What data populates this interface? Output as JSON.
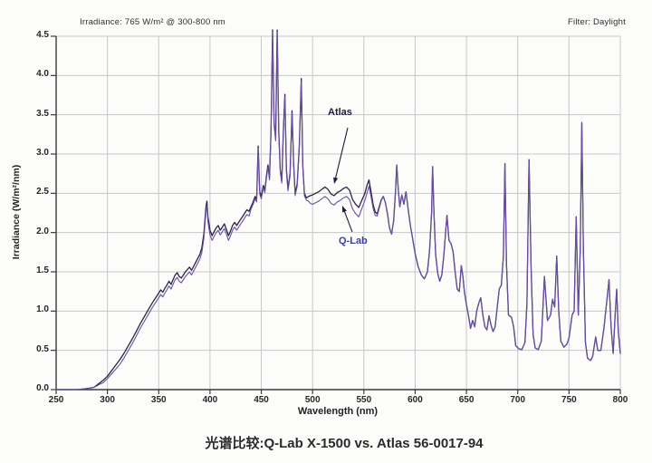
{
  "header": {
    "irradiance_note": "Irradiance: 765 W/m² @ 300-800 nm",
    "filter_note": "Filter: Daylight"
  },
  "caption": "光谱比较:Q-Lab X-1500 vs. Atlas 56-0017-94",
  "colors": {
    "atlas": "#2a2345",
    "qlab": "#6b4fa6",
    "grid": "#c8c8c8",
    "axis": "#3a3a3a",
    "annotation": "#1d1d38",
    "qlab_label": "#3e3e9e"
  },
  "chart_data": {
    "type": "line",
    "title": "",
    "xlabel": "Wavelength (nm)",
    "ylabel": "Irradiance (W/m²/nm)",
    "xlim": [
      250,
      800
    ],
    "ylim": [
      0,
      4.5
    ],
    "grid": true,
    "x_ticks": [
      "250",
      "300",
      "350",
      "400",
      "450",
      "500",
      "550",
      "600",
      "650",
      "700",
      "750",
      "800"
    ],
    "y_ticks": [
      "0.0",
      "0.5",
      "1.0",
      "1.5",
      "2.0",
      "2.5",
      "3.0",
      "3.5",
      "4.0",
      "4.5"
    ],
    "annotations": [
      {
        "label": "Atlas",
        "points_to": {
          "wavelength": 521,
          "value": 2.6
        }
      },
      {
        "label": "Q-Lab",
        "points_to": {
          "wavelength": 529,
          "value": 2.33
        }
      }
    ],
    "x": [
      250,
      260,
      270,
      278,
      283,
      287,
      290,
      293,
      296,
      300,
      304,
      308,
      312,
      316,
      320,
      324,
      328,
      332,
      336,
      340,
      344,
      347,
      350,
      352,
      354,
      356,
      358,
      360,
      362,
      364,
      366,
      368,
      370,
      372,
      374,
      376,
      378,
      380,
      382,
      384,
      386,
      388,
      390,
      392,
      394,
      396,
      397,
      398,
      400,
      402,
      404,
      406,
      408,
      410,
      412,
      414,
      416,
      418,
      420,
      422,
      424,
      426,
      428,
      430,
      432,
      434,
      436,
      438,
      440,
      442,
      444,
      445.5,
      447,
      448.5,
      450,
      452,
      453.5,
      455,
      456.5,
      458,
      459.5,
      461,
      462.5,
      464,
      465.5,
      467,
      468.5,
      470,
      471.5,
      473,
      474.5,
      476,
      478,
      480,
      481.5,
      483,
      485,
      487,
      489,
      490.5,
      492,
      494,
      496,
      498,
      500,
      503,
      506,
      509,
      512,
      515,
      518,
      521,
      524,
      527,
      530,
      533,
      536,
      539,
      542,
      545,
      547,
      549,
      551,
      553,
      555,
      557,
      559,
      561,
      563,
      565,
      567,
      569,
      571,
      573,
      575,
      577,
      579,
      581,
      582,
      583.5,
      585,
      587,
      589,
      591,
      593,
      595,
      597,
      600,
      603,
      606,
      609,
      612,
      614,
      616,
      617,
      618.5,
      620,
      622,
      624,
      626,
      628,
      630,
      631,
      633,
      635,
      637,
      639,
      641,
      643,
      645,
      646.5,
      648,
      650,
      652,
      654,
      656,
      658,
      660,
      662,
      664,
      666,
      668,
      670,
      672,
      674,
      676,
      678,
      680,
      682,
      684,
      686,
      687.5,
      689,
      691,
      694,
      696,
      698,
      701,
      704,
      707,
      709,
      711,
      713,
      715,
      717,
      720,
      723,
      726,
      729,
      732,
      734,
      736,
      738,
      740,
      742,
      745,
      748,
      750,
      753,
      755,
      757,
      759,
      761,
      762.5,
      764,
      766,
      768,
      771,
      773,
      776,
      778,
      781,
      784,
      787,
      789,
      791,
      793,
      795,
      796.5,
      798,
      800
    ],
    "series": [
      {
        "name": "Atlas",
        "values": [
          0,
          0,
          0,
          0.01,
          0.02,
          0.03,
          0.06,
          0.09,
          0.12,
          0.17,
          0.24,
          0.31,
          0.38,
          0.46,
          0.55,
          0.64,
          0.74,
          0.84,
          0.93,
          1.02,
          1.11,
          1.17,
          1.23,
          1.27,
          1.24,
          1.29,
          1.33,
          1.38,
          1.34,
          1.4,
          1.46,
          1.49,
          1.44,
          1.42,
          1.46,
          1.5,
          1.53,
          1.56,
          1.52,
          1.57,
          1.62,
          1.67,
          1.72,
          1.8,
          1.98,
          2.32,
          2.4,
          2.2,
          2.03,
          1.96,
          2.01,
          2.06,
          2.09,
          2.03,
          2.07,
          2.11,
          2.04,
          1.96,
          2.02,
          2.09,
          2.13,
          2.09,
          2.13,
          2.17,
          2.21,
          2.25,
          2.29,
          2.27,
          2.33,
          2.39,
          2.46,
          2.42,
          3.1,
          2.52,
          2.46,
          2.6,
          2.54,
          2.72,
          2.86,
          2.7,
          3.3,
          4.58,
          3.4,
          3.2,
          4.58,
          3.3,
          2.8,
          2.66,
          3.3,
          3.76,
          2.8,
          2.56,
          2.75,
          3.55,
          2.9,
          2.5,
          2.62,
          3.1,
          3.96,
          2.85,
          2.5,
          2.44,
          2.46,
          2.47,
          2.48,
          2.5,
          2.52,
          2.55,
          2.58,
          2.55,
          2.49,
          2.47,
          2.51,
          2.53,
          2.56,
          2.58,
          2.54,
          2.42,
          2.36,
          2.32,
          2.38,
          2.44,
          2.5,
          2.6,
          2.67,
          2.52,
          2.36,
          2.26,
          2.24,
          2.33,
          2.42,
          2.46,
          2.38,
          2.24,
          2.06,
          1.98,
          2.15,
          2.55,
          2.86,
          2.55,
          2.33,
          2.48,
          2.36,
          2.52,
          2.32,
          2.12,
          1.96,
          1.73,
          1.56,
          1.46,
          1.41,
          1.5,
          1.76,
          2.25,
          2.84,
          2.2,
          1.72,
          1.48,
          1.38,
          1.46,
          1.72,
          2.05,
          2.22,
          1.9,
          1.86,
          1.75,
          1.5,
          1.28,
          1.25,
          1.58,
          1.45,
          1.25,
          1.08,
          0.94,
          0.78,
          0.88,
          0.8,
          1.0,
          1.1,
          1.17,
          0.95,
          0.8,
          0.76,
          0.94,
          0.82,
          0.74,
          0.8,
          1.05,
          1.28,
          1.33,
          1.7,
          2.88,
          1.6,
          0.95,
          0.92,
          0.8,
          0.56,
          0.52,
          0.51,
          0.6,
          1.1,
          2.93,
          1.55,
          0.7,
          0.53,
          0.51,
          0.62,
          1.44,
          0.88,
          0.95,
          1.15,
          1.05,
          1.7,
          1.0,
          0.62,
          0.54,
          0.58,
          0.66,
          0.95,
          1.0,
          2.2,
          0.95,
          1.8,
          3.4,
          1.8,
          0.6,
          0.4,
          0.37,
          0.42,
          0.67,
          0.5,
          0.5,
          0.78,
          1.15,
          1.4,
          0.8,
          0.46,
          0.95,
          1.28,
          0.75,
          0.46
        ]
      },
      {
        "name": "Q-Lab",
        "values": [
          0,
          0,
          0,
          0.01,
          0.02,
          0.03,
          0.05,
          0.07,
          0.09,
          0.14,
          0.2,
          0.26,
          0.32,
          0.4,
          0.49,
          0.58,
          0.68,
          0.78,
          0.87,
          0.96,
          1.05,
          1.11,
          1.17,
          1.21,
          1.18,
          1.23,
          1.27,
          1.32,
          1.28,
          1.34,
          1.4,
          1.43,
          1.38,
          1.36,
          1.4,
          1.44,
          1.47,
          1.5,
          1.46,
          1.51,
          1.56,
          1.61,
          1.66,
          1.74,
          1.92,
          2.26,
          2.34,
          2.14,
          1.97,
          1.9,
          1.95,
          2.0,
          2.03,
          1.97,
          2.01,
          2.05,
          1.98,
          1.9,
          1.96,
          2.03,
          2.07,
          2.03,
          2.07,
          2.11,
          2.15,
          2.19,
          2.23,
          2.21,
          2.3,
          2.36,
          2.43,
          2.39,
          3.07,
          2.49,
          2.43,
          2.57,
          2.51,
          2.69,
          2.83,
          2.67,
          3.27,
          4.55,
          3.37,
          3.17,
          4.55,
          3.27,
          2.77,
          2.63,
          3.27,
          3.73,
          2.77,
          2.53,
          2.72,
          3.52,
          2.87,
          2.47,
          2.59,
          3.07,
          3.93,
          2.82,
          2.47,
          2.41,
          2.4,
          2.37,
          2.36,
          2.38,
          2.4,
          2.43,
          2.46,
          2.43,
          2.37,
          2.35,
          2.39,
          2.41,
          2.44,
          2.46,
          2.42,
          2.3,
          2.24,
          2.2,
          2.27,
          2.34,
          2.41,
          2.5,
          2.59,
          2.46,
          2.31,
          2.22,
          2.21,
          2.31,
          2.41,
          2.46,
          2.38,
          2.24,
          2.06,
          1.98,
          2.15,
          2.55,
          2.86,
          2.55,
          2.33,
          2.48,
          2.36,
          2.52,
          2.32,
          2.12,
          1.96,
          1.73,
          1.56,
          1.46,
          1.41,
          1.5,
          1.76,
          2.25,
          2.84,
          2.2,
          1.72,
          1.48,
          1.38,
          1.46,
          1.72,
          2.05,
          2.22,
          1.9,
          1.86,
          1.75,
          1.5,
          1.28,
          1.25,
          1.58,
          1.45,
          1.25,
          1.08,
          0.94,
          0.78,
          0.88,
          0.8,
          1.0,
          1.1,
          1.17,
          0.95,
          0.8,
          0.76,
          0.94,
          0.82,
          0.74,
          0.8,
          1.05,
          1.28,
          1.33,
          1.7,
          2.88,
          1.6,
          0.95,
          0.92,
          0.8,
          0.56,
          0.52,
          0.51,
          0.6,
          1.1,
          2.93,
          1.55,
          0.7,
          0.53,
          0.51,
          0.62,
          1.44,
          0.88,
          0.95,
          1.15,
          1.05,
          1.7,
          1.0,
          0.62,
          0.54,
          0.58,
          0.66,
          0.95,
          1.0,
          2.2,
          0.95,
          1.8,
          3.4,
          1.8,
          0.6,
          0.4,
          0.37,
          0.42,
          0.67,
          0.5,
          0.5,
          0.78,
          1.15,
          1.4,
          0.8,
          0.46,
          0.95,
          1.28,
          0.75,
          0.46
        ]
      }
    ]
  }
}
